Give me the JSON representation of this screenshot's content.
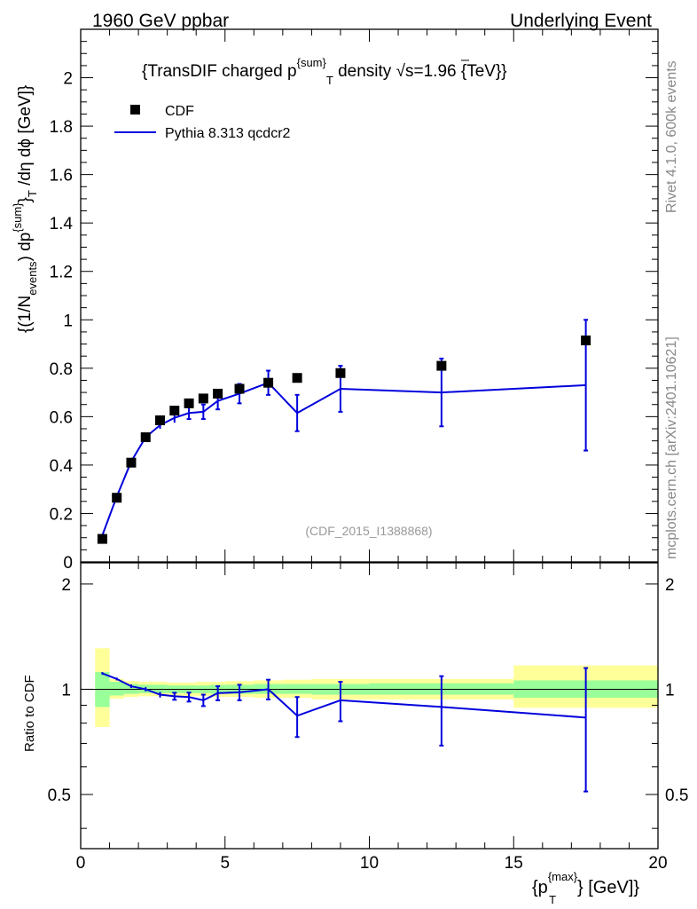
{
  "header": {
    "left": "1960 GeV ppbar",
    "right": "Underlying Event"
  },
  "side_labels": {
    "rivet": "Rivet 4.1.0,  600k events",
    "mcplots": "mcplots.cern.ch [arXiv:2401.10621]"
  },
  "colors": {
    "data": "#000000",
    "mc": "#0000dd",
    "band_inner": "#99ff99",
    "band_outer": "#ffff99"
  },
  "chart_data": [
    {
      "type": "line",
      "title": "{TransDIF charged p^{sum}_T density √s=1.96 {TeV}}",
      "title_parts": {
        "pre": "{TransDIF charged p",
        "sup": "{sum}",
        "sub": "T",
        "mid": " density ",
        "sqrt": "√",
        "post": "s=1.96 {TeV}}"
      },
      "ylabel": "{(1/N_{events}) dp^{sum}_T /dη dφ [GeV]}",
      "ylabel_parts": {
        "a": "{(1/N",
        "a_sub": "events",
        "b": ") dp",
        "b_sup": "{sum}",
        "c": "}",
        "c_sub": "T",
        "d": " /dη  dϕ [GeV]}"
      },
      "watermark": "(CDF_2015_I1388868)",
      "xlim": [
        0,
        20
      ],
      "ylim": [
        0,
        2.2
      ],
      "yticks": [
        0,
        0.2,
        0.4,
        0.6,
        0.8,
        1,
        1.2,
        1.4,
        1.6,
        1.8,
        2
      ],
      "ytick_labels": [
        "0",
        "0.2",
        "0.4",
        "0.6",
        "0.8",
        "1",
        "1.2",
        "1.4",
        "1.6",
        "1.8",
        "2"
      ],
      "legend": [
        "CDF",
        "Pythia 8.313 qcdcr2"
      ],
      "legend_placement": "top-left",
      "series": [
        {
          "name": "CDF",
          "style": "markers",
          "x": [
            0.75,
            1.25,
            1.75,
            2.25,
            2.75,
            3.25,
            3.75,
            4.25,
            4.75,
            5.5,
            6.5,
            7.5,
            9.0,
            12.5,
            17.5
          ],
          "y": [
            0.095,
            0.265,
            0.41,
            0.515,
            0.585,
            0.625,
            0.655,
            0.675,
            0.695,
            0.715,
            0.74,
            0.76,
            0.78,
            0.81,
            0.915
          ]
        },
        {
          "name": "Pythia 8.313 qcdcr2",
          "style": "line",
          "x": [
            0.75,
            1.25,
            1.75,
            2.25,
            2.75,
            3.25,
            3.75,
            4.25,
            4.75,
            5.5,
            6.5,
            7.5,
            9.0,
            12.5,
            17.5
          ],
          "y": [
            0.11,
            0.27,
            0.415,
            0.515,
            0.565,
            0.595,
            0.615,
            0.62,
            0.665,
            0.695,
            0.74,
            0.615,
            0.715,
            0.7,
            0.73
          ],
          "yerr": [
            0.005,
            0.008,
            0.01,
            0.012,
            0.015,
            0.02,
            0.025,
            0.03,
            0.035,
            0.04,
            0.05,
            0.075,
            0.095,
            0.14,
            0.27
          ]
        }
      ]
    },
    {
      "type": "line",
      "ylabel": "Ratio to CDF",
      "xlabel": "{p_T^{max}} [GeV]}",
      "xlabel_parts": {
        "pre": "{p",
        "sup": "{max}",
        "sub": "T",
        "post": "} [GeV]}"
      },
      "xlim": [
        0,
        20
      ],
      "ylim": [
        0.35,
        2.3
      ],
      "yscale": "log",
      "xticks": [
        0,
        5,
        10,
        15,
        20
      ],
      "xtick_labels": [
        "0",
        "5",
        "10",
        "15",
        "20"
      ],
      "yticks": [
        0.5,
        1,
        2
      ],
      "ytick_labels": [
        "0.5",
        "1",
        "2"
      ],
      "bands": {
        "edges": [
          0.5,
          1.0,
          1.5,
          2.0,
          2.5,
          3.0,
          3.5,
          4.0,
          4.5,
          5.0,
          6.0,
          7.0,
          8.0,
          10.0,
          15.0,
          20.0
        ],
        "inner_lo": [
          0.89,
          0.96,
          0.97,
          0.975,
          0.975,
          0.975,
          0.975,
          0.975,
          0.97,
          0.97,
          0.97,
          0.97,
          0.965,
          0.965,
          0.945
        ],
        "inner_hi": [
          1.12,
          1.05,
          1.035,
          1.03,
          1.03,
          1.025,
          1.025,
          1.025,
          1.03,
          1.03,
          1.035,
          1.035,
          1.035,
          1.04,
          1.06
        ],
        "outer_lo": [
          0.78,
          0.94,
          0.95,
          0.955,
          0.955,
          0.955,
          0.955,
          0.955,
          0.95,
          0.95,
          0.945,
          0.945,
          0.935,
          0.935,
          0.885
        ],
        "outer_hi": [
          1.31,
          1.07,
          1.055,
          1.05,
          1.05,
          1.045,
          1.045,
          1.05,
          1.05,
          1.055,
          1.06,
          1.065,
          1.07,
          1.07,
          1.17
        ]
      },
      "series": [
        {
          "name": "Pythia 8.313 qcdcr2 / CDF",
          "style": "line",
          "x": [
            0.75,
            1.25,
            1.75,
            2.25,
            2.75,
            3.25,
            3.75,
            4.25,
            4.75,
            5.5,
            6.5,
            7.5,
            9.0,
            12.5,
            17.5
          ],
          "y": [
            1.11,
            1.07,
            1.02,
            1.0,
            0.965,
            0.955,
            0.95,
            0.93,
            0.975,
            0.98,
            1.0,
            0.84,
            0.93,
            0.89,
            0.83
          ],
          "yerr": [
            0.01,
            0.01,
            0.012,
            0.014,
            0.018,
            0.022,
            0.028,
            0.035,
            0.045,
            0.05,
            0.065,
            0.11,
            0.12,
            0.2,
            0.32
          ]
        }
      ]
    }
  ]
}
